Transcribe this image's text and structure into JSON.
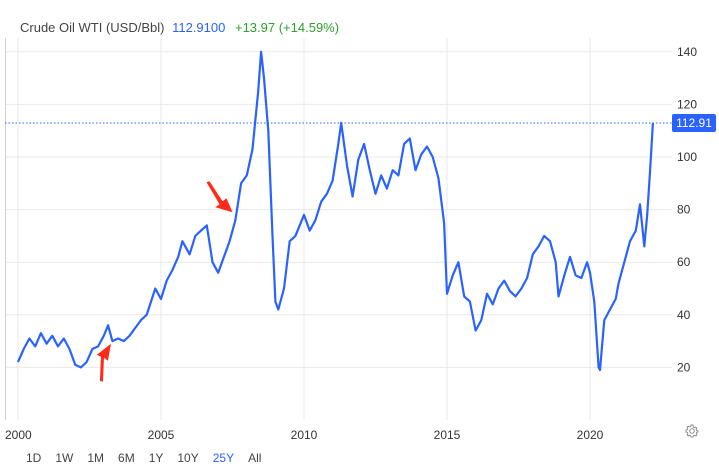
{
  "header": {
    "title": "Crude Oil WTI (USD/Bbl)",
    "price": "112.9100",
    "change": "+13.97 (+14.59%)"
  },
  "colors": {
    "line": "#2962ff",
    "up": "#2ca02c",
    "arrow": "#ff2a1a",
    "grid": "#e9e9e9"
  },
  "ranges": {
    "options": [
      "1D",
      "1W",
      "1M",
      "6M",
      "1Y",
      "10Y",
      "25Y",
      "All"
    ],
    "active": "25Y"
  },
  "settings_icon": "gear-icon",
  "chart_data": {
    "type": "line",
    "ylim": [
      0,
      145
    ],
    "yticks": [
      20,
      40,
      60,
      80,
      100,
      120,
      140
    ],
    "xlim": [
      1999.93,
      2022.25
    ],
    "xticks": [
      2000,
      2005,
      2010,
      2015,
      2020
    ],
    "xtick_labels": [
      "2000",
      "2005",
      "2010",
      "2015",
      "2020"
    ],
    "current_value": 112.91,
    "current_label": "112.91",
    "grid": true,
    "annotations": [
      {
        "type": "arrow",
        "x": 2003.25,
        "y": 29,
        "note": ""
      },
      {
        "type": "arrow",
        "x": 2007.5,
        "y": 79,
        "note": ""
      }
    ],
    "series": [
      {
        "points": [
          [
            2000.0,
            22
          ],
          [
            2000.2,
            27
          ],
          [
            2000.4,
            31
          ],
          [
            2000.6,
            28
          ],
          [
            2000.8,
            33
          ],
          [
            2001.0,
            29
          ],
          [
            2001.2,
            32
          ],
          [
            2001.4,
            28
          ],
          [
            2001.6,
            31
          ],
          [
            2001.8,
            27
          ],
          [
            2002.0,
            21
          ],
          [
            2002.2,
            20
          ],
          [
            2002.4,
            22
          ],
          [
            2002.6,
            27
          ],
          [
            2002.8,
            28
          ],
          [
            2003.0,
            32
          ],
          [
            2003.15,
            36
          ],
          [
            2003.3,
            30
          ],
          [
            2003.5,
            31
          ],
          [
            2003.7,
            30
          ],
          [
            2003.9,
            32
          ],
          [
            2004.1,
            35
          ],
          [
            2004.3,
            38
          ],
          [
            2004.5,
            40
          ],
          [
            2004.8,
            50
          ],
          [
            2005.0,
            46
          ],
          [
            2005.2,
            53
          ],
          [
            2005.4,
            57
          ],
          [
            2005.6,
            62
          ],
          [
            2005.75,
            68
          ],
          [
            2006.0,
            63
          ],
          [
            2006.2,
            70
          ],
          [
            2006.4,
            72
          ],
          [
            2006.6,
            74
          ],
          [
            2006.8,
            60
          ],
          [
            2007.0,
            56
          ],
          [
            2007.2,
            62
          ],
          [
            2007.4,
            68
          ],
          [
            2007.6,
            76
          ],
          [
            2007.8,
            90
          ],
          [
            2008.0,
            93
          ],
          [
            2008.2,
            103
          ],
          [
            2008.4,
            125
          ],
          [
            2008.5,
            140
          ],
          [
            2008.6,
            130
          ],
          [
            2008.75,
            110
          ],
          [
            2008.9,
            70
          ],
          [
            2009.0,
            45
          ],
          [
            2009.1,
            42
          ],
          [
            2009.3,
            50
          ],
          [
            2009.5,
            68
          ],
          [
            2009.7,
            70
          ],
          [
            2010.0,
            78
          ],
          [
            2010.2,
            72
          ],
          [
            2010.4,
            76
          ],
          [
            2010.6,
            83
          ],
          [
            2010.8,
            86
          ],
          [
            2011.0,
            91
          ],
          [
            2011.2,
            105
          ],
          [
            2011.3,
            113
          ],
          [
            2011.5,
            97
          ],
          [
            2011.7,
            85
          ],
          [
            2011.9,
            99
          ],
          [
            2012.1,
            105
          ],
          [
            2012.3,
            95
          ],
          [
            2012.5,
            86
          ],
          [
            2012.7,
            93
          ],
          [
            2012.9,
            88
          ],
          [
            2013.1,
            95
          ],
          [
            2013.3,
            93
          ],
          [
            2013.5,
            105
          ],
          [
            2013.7,
            107
          ],
          [
            2013.9,
            95
          ],
          [
            2014.1,
            101
          ],
          [
            2014.3,
            104
          ],
          [
            2014.5,
            100
          ],
          [
            2014.7,
            92
          ],
          [
            2014.9,
            75
          ],
          [
            2015.0,
            48
          ],
          [
            2015.2,
            55
          ],
          [
            2015.4,
            60
          ],
          [
            2015.6,
            47
          ],
          [
            2015.8,
            45
          ],
          [
            2016.0,
            34
          ],
          [
            2016.2,
            38
          ],
          [
            2016.4,
            48
          ],
          [
            2016.6,
            44
          ],
          [
            2016.8,
            50
          ],
          [
            2017.0,
            53
          ],
          [
            2017.2,
            49
          ],
          [
            2017.4,
            47
          ],
          [
            2017.6,
            50
          ],
          [
            2017.8,
            54
          ],
          [
            2018.0,
            63
          ],
          [
            2018.2,
            66
          ],
          [
            2018.4,
            70
          ],
          [
            2018.6,
            68
          ],
          [
            2018.8,
            60
          ],
          [
            2018.9,
            47
          ],
          [
            2019.1,
            55
          ],
          [
            2019.3,
            62
          ],
          [
            2019.5,
            55
          ],
          [
            2019.7,
            54
          ],
          [
            2019.9,
            60
          ],
          [
            2020.0,
            56
          ],
          [
            2020.15,
            45
          ],
          [
            2020.3,
            20
          ],
          [
            2020.35,
            19
          ],
          [
            2020.5,
            38
          ],
          [
            2020.7,
            42
          ],
          [
            2020.9,
            46
          ],
          [
            2021.0,
            52
          ],
          [
            2021.2,
            60
          ],
          [
            2021.4,
            68
          ],
          [
            2021.6,
            72
          ],
          [
            2021.75,
            82
          ],
          [
            2021.9,
            66
          ],
          [
            2022.0,
            78
          ],
          [
            2022.1,
            95
          ],
          [
            2022.2,
            112.91
          ]
        ]
      }
    ]
  }
}
